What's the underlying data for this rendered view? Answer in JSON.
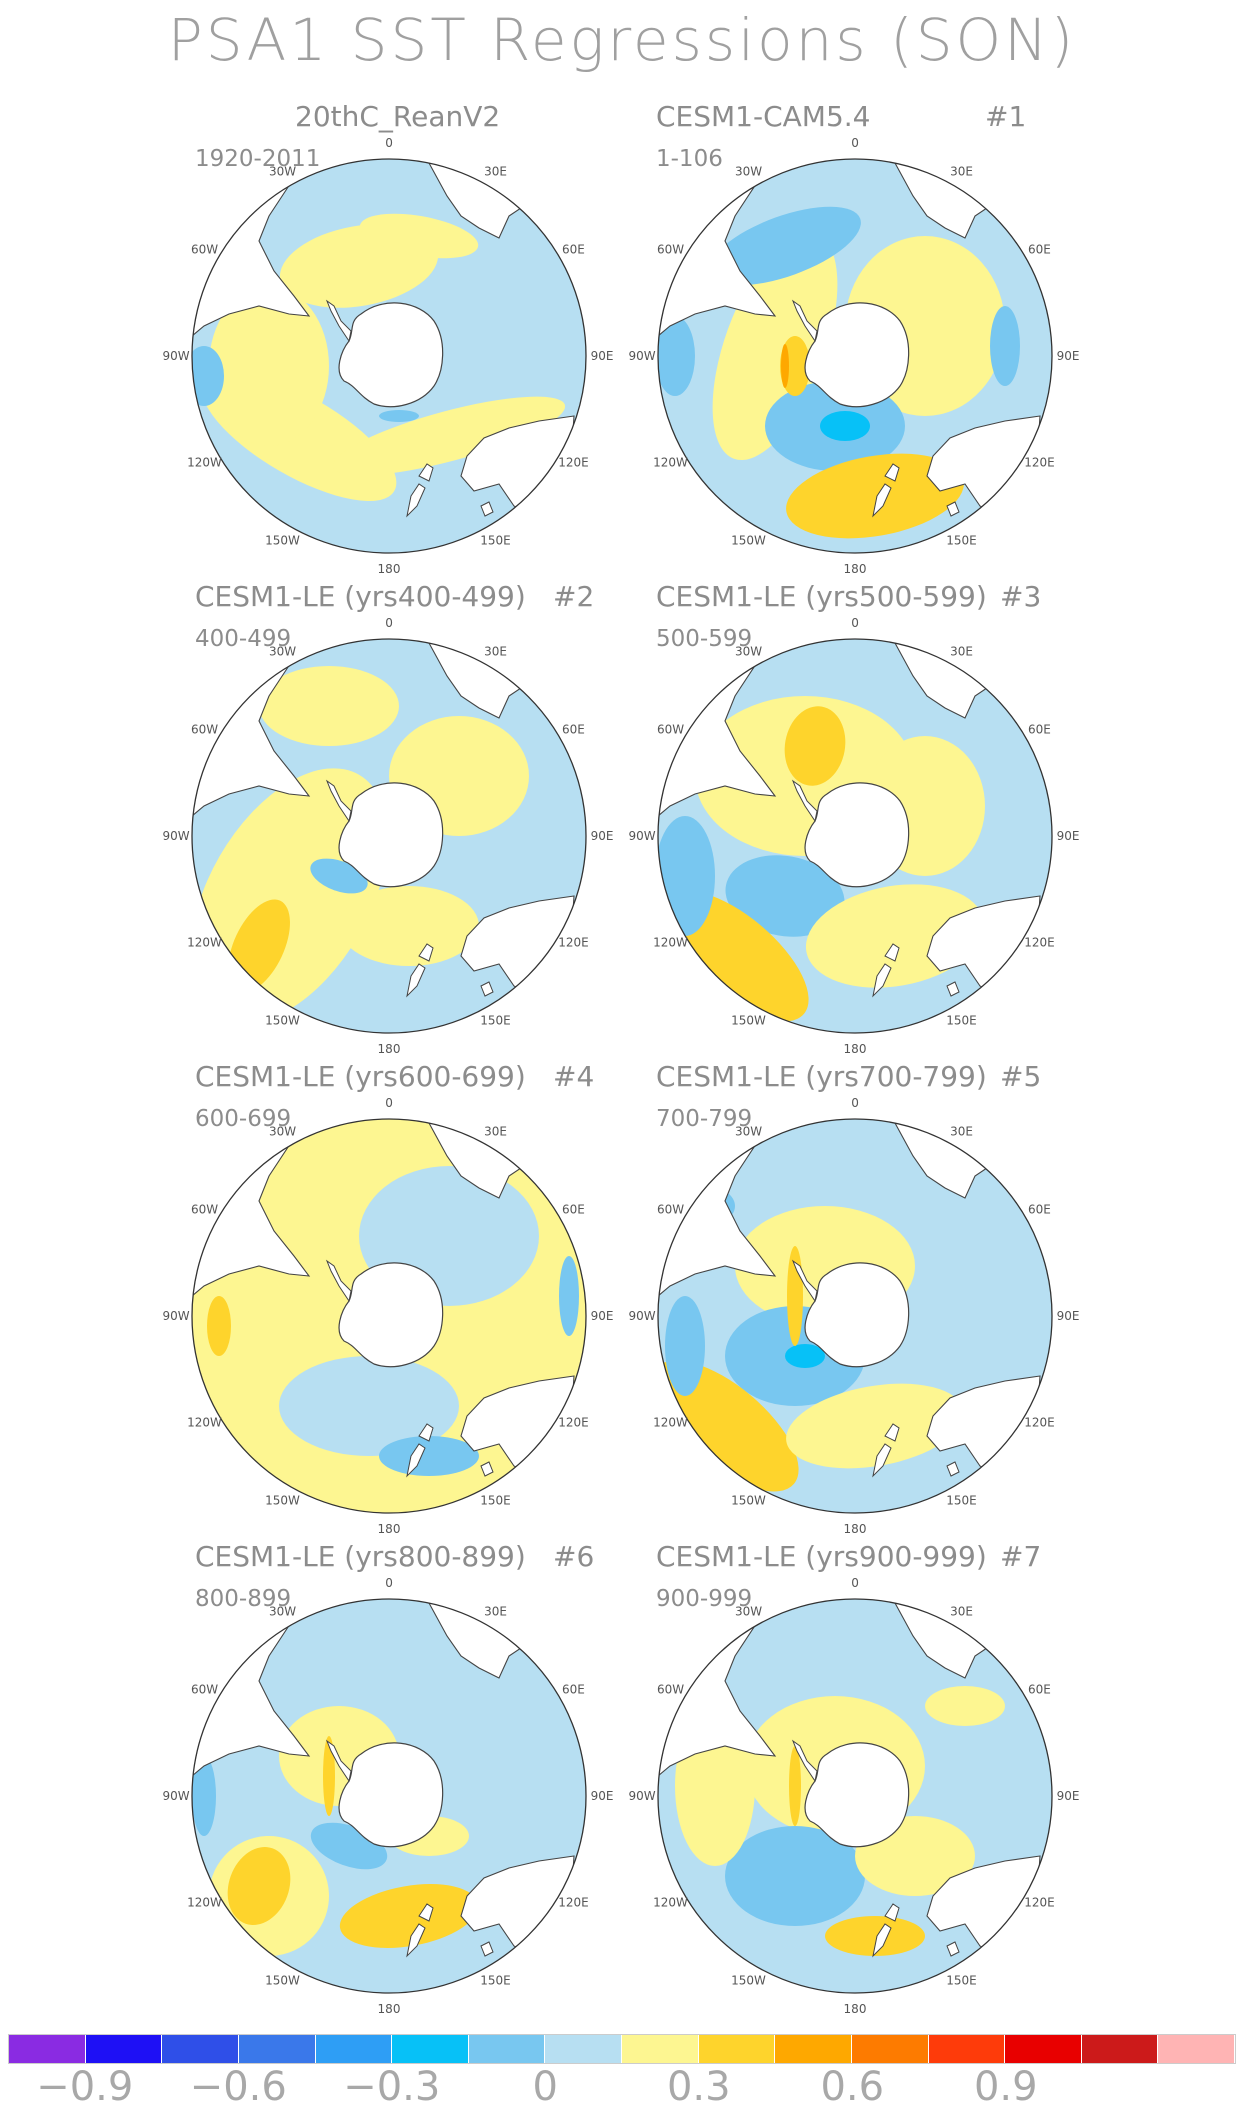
{
  "title": "PSA1 SST Regressions (SON)",
  "colors": {
    "land": "#ffffff",
    "coast": "#444444",
    "levels": [
      "#8a2be2",
      "#1e10f5",
      "#2f4fe8",
      "#3a78ea",
      "#2e9ef5",
      "#07c1f7",
      "#78c7f0",
      "#b7dff2",
      "#fdf691",
      "#fed42c",
      "#fea800",
      "#fd7b00",
      "#fe3b0a",
      "#e80000",
      "#cc1a1a",
      "#ffb4b4"
    ]
  },
  "colorbar": {
    "tick_labels": [
      "−0.9",
      "−0.6",
      "−0.3",
      "0",
      "0.3",
      "0.6",
      "0.9"
    ],
    "tick_positions": [
      1,
      3,
      5,
      7,
      9,
      11,
      13
    ]
  },
  "longitude_labels": [
    "0",
    "30E",
    "60E",
    "90E",
    "120E",
    "150E",
    "180",
    "150W",
    "120W",
    "90W",
    "60W",
    "30W"
  ],
  "panels": [
    {
      "name": "20thC_ReanV2",
      "number": "",
      "years": "1920-2011",
      "pattern": 0
    },
    {
      "name": "CESM1-CAM5.4",
      "number": "#1",
      "years": "1-106",
      "pattern": 1
    },
    {
      "name": "CESM1-LE (yrs400-499)",
      "number": "#2",
      "years": "400-499",
      "pattern": 2
    },
    {
      "name": "CESM1-LE (yrs500-599)",
      "number": "#3",
      "years": "500-599",
      "pattern": 3
    },
    {
      "name": "CESM1-LE (yrs600-699)",
      "number": "#4",
      "years": "600-699",
      "pattern": 4
    },
    {
      "name": "CESM1-LE (yrs700-799)",
      "number": "#5",
      "years": "700-799",
      "pattern": 5
    },
    {
      "name": "CESM1-LE (yrs800-899)",
      "number": "#6",
      "years": "800-899",
      "pattern": 6
    },
    {
      "name": "CESM1-LE (yrs900-999)",
      "number": "#7",
      "years": "900-999",
      "pattern": 7
    }
  ]
}
